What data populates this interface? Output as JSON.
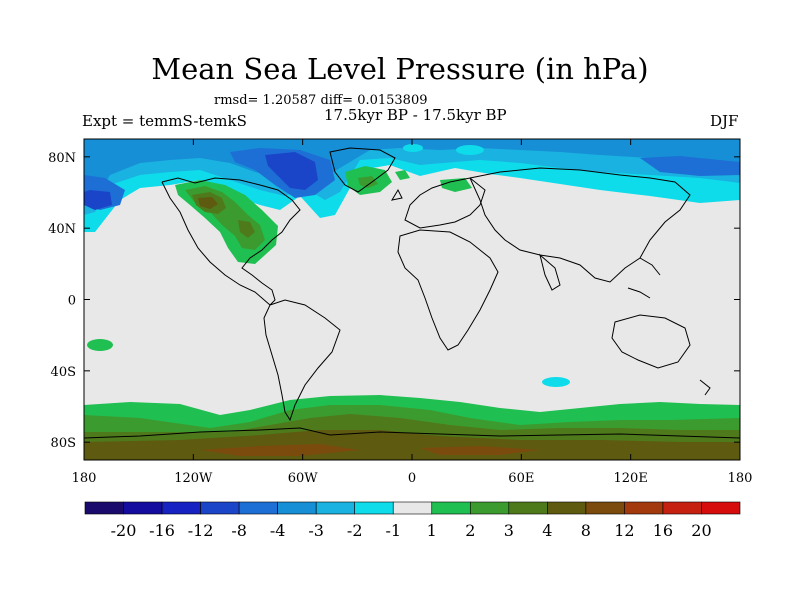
{
  "chart_data": {
    "type": "heatmap",
    "title": "Mean Sea Level Pressure (in hPa)",
    "stats_text": "rmsd= 1.20587 diff= 0.0153809",
    "period": "17.5kyr BP - 17.5kyr BP",
    "experiment": "Expt = temmS-temkS",
    "season": "DJF",
    "xlim": [
      -180,
      180
    ],
    "ylim": [
      -90,
      90
    ],
    "x_ticks": [
      {
        "value": -180,
        "label": "180"
      },
      {
        "value": -120,
        "label": "120W"
      },
      {
        "value": -60,
        "label": "60W"
      },
      {
        "value": 0,
        "label": "0"
      },
      {
        "value": 60,
        "label": "60E"
      },
      {
        "value": 120,
        "label": "120E"
      },
      {
        "value": 180,
        "label": "180"
      }
    ],
    "y_ticks": [
      {
        "value": 80,
        "label": "80N"
      },
      {
        "value": 40,
        "label": "40N"
      },
      {
        "value": 0,
        "label": "0"
      },
      {
        "value": -40,
        "label": "40S"
      },
      {
        "value": -80,
        "label": "80S"
      }
    ],
    "colorbar": {
      "colors": [
        "#1a0a6b",
        "#130c9e",
        "#1623c2",
        "#1a45c8",
        "#1d6fd6",
        "#168fd6",
        "#1ab2e0",
        "#0fdcea",
        "#e8e8e8",
        "#1fbf52",
        "#3c9b2e",
        "#4e7a1b",
        "#5e5a10",
        "#7a4b0d",
        "#a33a0e",
        "#c62010",
        "#d60b0c"
      ],
      "labels": [
        "-20",
        "-16",
        "-12",
        "-8",
        "-4",
        "-3",
        "-2",
        "-1",
        "1",
        "2",
        "3",
        "4",
        "8",
        "12",
        "16",
        "20"
      ]
    },
    "regions": [
      {
        "name": "north-pacific-arctic-low",
        "level": -3,
        "color": "#1ab2e0"
      },
      {
        "name": "arctic-canada-low",
        "level": -8,
        "color": "#1a45c8"
      },
      {
        "name": "north-america-high",
        "level": 3,
        "color": "#3c9b2e"
      },
      {
        "name": "siberia-low",
        "level": -2,
        "color": "#1ab2e0"
      },
      {
        "name": "southern-ocean-high",
        "level": 2,
        "color": "#1fbf52"
      },
      {
        "name": "antarctica-high",
        "level": 4,
        "color": "#4e7a1b"
      }
    ]
  }
}
